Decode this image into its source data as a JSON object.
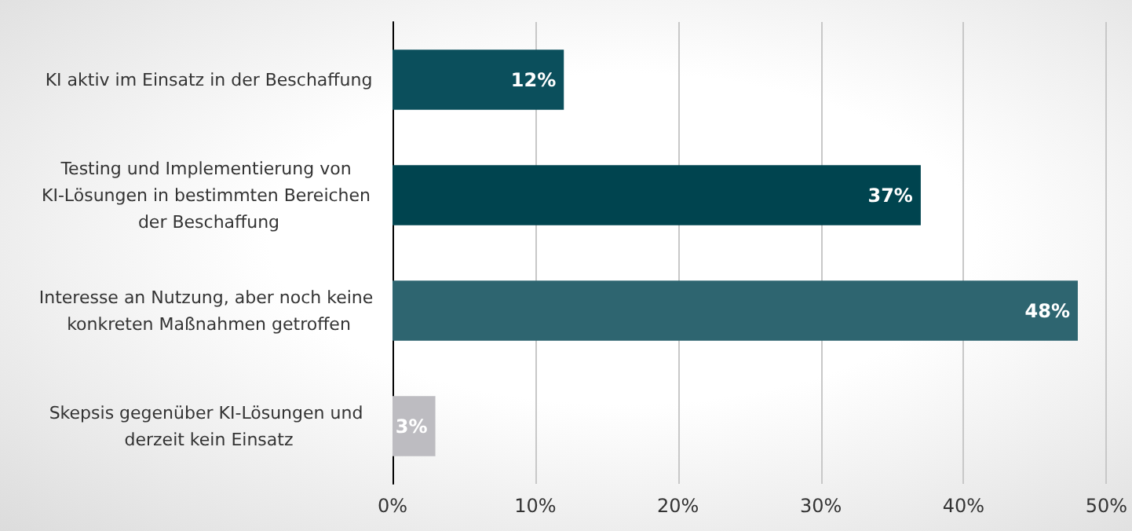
{
  "chart_data": {
    "type": "bar",
    "orientation": "horizontal",
    "categories": [
      "KI aktiv im Einsatz in der Beschaffung",
      "Testing und Implementierung von KI-Lösungen in bestimmten Bereichen der Beschaffung",
      "Interesse an Nutzung, aber noch keine konkreten Maßnahmen getroffen",
      "Skepsis gegenüber KI-Lösungen und derzeit kein Einsatz"
    ],
    "values": [
      12,
      37,
      48,
      3
    ],
    "colors": [
      "#0b4f5c",
      "#00444f",
      "#2e6570",
      "#bdbcc1"
    ],
    "value_labels": [
      "12%",
      "37%",
      "48%",
      "3%"
    ],
    "xlim": [
      0,
      50
    ],
    "xticks": [
      {
        "value": 0,
        "label": "0%"
      },
      {
        "value": 10,
        "label": "10%"
      },
      {
        "value": 20,
        "label": "20%"
      },
      {
        "value": 30,
        "label": "30%"
      },
      {
        "value": 40,
        "label": "40%"
      },
      {
        "value": 50,
        "label": "50%"
      }
    ],
    "grid": "x"
  }
}
